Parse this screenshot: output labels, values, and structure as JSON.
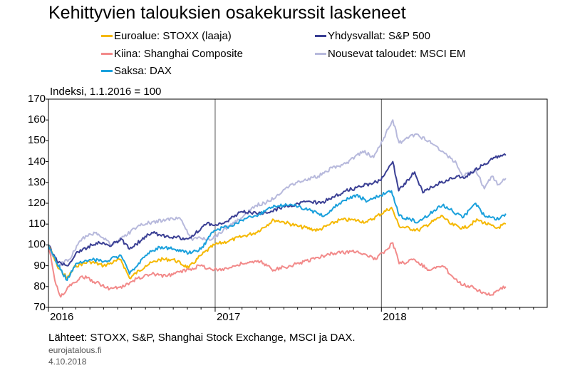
{
  "chart_data": {
    "type": "line",
    "title": "Kehittyvien talouksien osakekurssit laskeneet",
    "unit_label": "Indeksi, 1.1.2016 = 100",
    "ylim": [
      70,
      170
    ],
    "yticks": [
      "70",
      "80",
      "90",
      "100",
      "110",
      "120",
      "130",
      "140",
      "150",
      "160",
      "170"
    ],
    "xlim": [
      "2016-01-01",
      "2018-12-31"
    ],
    "xticks": [
      "2016",
      "2017",
      "2018"
    ],
    "grid": "vertical lines at year boundaries",
    "legend_placement": "top",
    "series": [
      {
        "name": "Euroalue: STOXX (laaja)",
        "color": "#f5b800",
        "points": [
          [
            "2016-01-01",
            100
          ],
          [
            "2016-01-20",
            90
          ],
          [
            "2016-02-11",
            84
          ],
          [
            "2016-03-01",
            90
          ],
          [
            "2016-04-01",
            92
          ],
          [
            "2016-05-01",
            90
          ],
          [
            "2016-06-08",
            93
          ],
          [
            "2016-06-27",
            84
          ],
          [
            "2016-08-01",
            90
          ],
          [
            "2016-09-01",
            93
          ],
          [
            "2016-10-01",
            93
          ],
          [
            "2016-11-04",
            89
          ],
          [
            "2016-12-01",
            95
          ],
          [
            "2016-12-30",
            100
          ],
          [
            "2017-02-01",
            102
          ],
          [
            "2017-03-01",
            104
          ],
          [
            "2017-04-01",
            106
          ],
          [
            "2017-05-10",
            112
          ],
          [
            "2017-06-01",
            111
          ],
          [
            "2017-07-01",
            109
          ],
          [
            "2017-08-15",
            107
          ],
          [
            "2017-10-01",
            112
          ],
          [
            "2017-11-01",
            112
          ],
          [
            "2017-12-01",
            111
          ],
          [
            "2018-01-23",
            118
          ],
          [
            "2018-02-09",
            109
          ],
          [
            "2018-03-23",
            107
          ],
          [
            "2018-05-15",
            114
          ],
          [
            "2018-06-01",
            110
          ],
          [
            "2018-07-01",
            108
          ],
          [
            "2018-08-01",
            112
          ],
          [
            "2018-09-10",
            108
          ],
          [
            "2018-10-01",
            110
          ]
        ]
      },
      {
        "name": "Kiina: Shanghai Composite",
        "color": "#f28a8a",
        "points": [
          [
            "2016-01-01",
            100
          ],
          [
            "2016-01-15",
            83
          ],
          [
            "2016-01-28",
            75
          ],
          [
            "2016-02-15",
            80
          ],
          [
            "2016-03-15",
            85
          ],
          [
            "2016-04-15",
            82
          ],
          [
            "2016-05-15",
            79
          ],
          [
            "2016-06-15",
            80
          ],
          [
            "2016-07-15",
            84
          ],
          [
            "2016-08-15",
            86
          ],
          [
            "2016-09-15",
            85
          ],
          [
            "2016-10-15",
            87
          ],
          [
            "2016-11-30",
            90
          ],
          [
            "2016-12-30",
            88
          ],
          [
            "2017-02-01",
            89
          ],
          [
            "2017-03-01",
            91
          ],
          [
            "2017-04-10",
            92
          ],
          [
            "2017-05-10",
            88
          ],
          [
            "2017-06-15",
            90
          ],
          [
            "2017-07-15",
            92
          ],
          [
            "2017-08-15",
            94
          ],
          [
            "2017-09-15",
            96
          ],
          [
            "2017-11-10",
            97
          ],
          [
            "2017-12-20",
            93
          ],
          [
            "2018-01-26",
            101
          ],
          [
            "2018-02-09",
            91
          ],
          [
            "2018-03-15",
            93
          ],
          [
            "2018-04-15",
            88
          ],
          [
            "2018-05-15",
            90
          ],
          [
            "2018-06-20",
            82
          ],
          [
            "2018-07-15",
            80
          ],
          [
            "2018-08-15",
            77
          ],
          [
            "2018-09-01",
            76
          ],
          [
            "2018-09-15",
            78
          ],
          [
            "2018-10-01",
            80
          ]
        ]
      },
      {
        "name": "Saksa: DAX",
        "color": "#1aa0dc",
        "points": [
          [
            "2016-01-01",
            100
          ],
          [
            "2016-01-20",
            91
          ],
          [
            "2016-02-11",
            83
          ],
          [
            "2016-03-01",
            91
          ],
          [
            "2016-04-01",
            93
          ],
          [
            "2016-05-01",
            92
          ],
          [
            "2016-06-08",
            95
          ],
          [
            "2016-06-27",
            86
          ],
          [
            "2016-08-01",
            95
          ],
          [
            "2016-09-01",
            99
          ],
          [
            "2016-10-01",
            98
          ],
          [
            "2016-11-04",
            96
          ],
          [
            "2016-12-01",
            98
          ],
          [
            "2016-12-30",
            107
          ],
          [
            "2017-02-01",
            109
          ],
          [
            "2017-03-01",
            112
          ],
          [
            "2017-04-01",
            114
          ],
          [
            "2017-05-10",
            119
          ],
          [
            "2017-06-20",
            119
          ],
          [
            "2017-07-25",
            117
          ],
          [
            "2017-08-29",
            114
          ],
          [
            "2017-10-01",
            120
          ],
          [
            "2017-11-07",
            124
          ],
          [
            "2017-12-01",
            121
          ],
          [
            "2018-01-23",
            126
          ],
          [
            "2018-02-09",
            114
          ],
          [
            "2018-03-23",
            111
          ],
          [
            "2018-05-15",
            119
          ],
          [
            "2018-06-01",
            117
          ],
          [
            "2018-06-28",
            113
          ],
          [
            "2018-07-27",
            120
          ],
          [
            "2018-08-15",
            114
          ],
          [
            "2018-09-10",
            112
          ],
          [
            "2018-10-01",
            115
          ]
        ]
      },
      {
        "name": "Yhdysvallat: S&P 500",
        "color": "#3a3f94",
        "points": [
          [
            "2016-01-01",
            100
          ],
          [
            "2016-01-20",
            92
          ],
          [
            "2016-02-11",
            90
          ],
          [
            "2016-03-01",
            96
          ],
          [
            "2016-04-15",
            101
          ],
          [
            "2016-05-20",
            100
          ],
          [
            "2016-06-08",
            103
          ],
          [
            "2016-06-27",
            98
          ],
          [
            "2016-08-15",
            106
          ],
          [
            "2016-09-15",
            104
          ],
          [
            "2016-11-04",
            103
          ],
          [
            "2016-12-13",
            110
          ],
          [
            "2017-01-15",
            110
          ],
          [
            "2017-03-01",
            116
          ],
          [
            "2017-04-13",
            115
          ],
          [
            "2017-06-15",
            119
          ],
          [
            "2017-07-25",
            121
          ],
          [
            "2017-08-21",
            120
          ],
          [
            "2017-10-15",
            126
          ],
          [
            "2017-11-15",
            128
          ],
          [
            "2017-12-31",
            131
          ],
          [
            "2018-01-26",
            140
          ],
          [
            "2018-02-08",
            126
          ],
          [
            "2018-03-15",
            135
          ],
          [
            "2018-04-02",
            125
          ],
          [
            "2018-05-01",
            129
          ],
          [
            "2018-06-15",
            133
          ],
          [
            "2018-07-01",
            132
          ],
          [
            "2018-08-15",
            139
          ],
          [
            "2018-09-20",
            143
          ],
          [
            "2018-10-01",
            143
          ]
        ]
      },
      {
        "name": "Nousevat taloudet: MSCI EM",
        "color": "#b7b9dc",
        "points": [
          [
            "2016-01-01",
            100
          ],
          [
            "2016-01-21",
            90
          ],
          [
            "2016-02-15",
            93
          ],
          [
            "2016-03-15",
            103
          ],
          [
            "2016-04-15",
            106
          ],
          [
            "2016-05-20",
            100
          ],
          [
            "2016-06-15",
            104
          ],
          [
            "2016-07-15",
            109
          ],
          [
            "2016-08-15",
            111
          ],
          [
            "2016-09-15",
            112
          ],
          [
            "2016-10-15",
            113
          ],
          [
            "2016-11-10",
            103
          ],
          [
            "2016-12-27",
            103
          ],
          [
            "2017-01-31",
            109
          ],
          [
            "2017-03-01",
            113
          ],
          [
            "2017-04-01",
            119
          ],
          [
            "2017-05-01",
            121
          ],
          [
            "2017-06-15",
            129
          ],
          [
            "2017-07-15",
            131
          ],
          [
            "2017-08-15",
            133
          ],
          [
            "2017-09-15",
            137
          ],
          [
            "2017-10-15",
            139
          ],
          [
            "2017-11-21",
            145
          ],
          [
            "2017-12-15",
            142
          ],
          [
            "2018-01-26",
            160
          ],
          [
            "2018-02-09",
            149
          ],
          [
            "2018-03-15",
            153
          ],
          [
            "2018-04-15",
            150
          ],
          [
            "2018-05-15",
            145
          ],
          [
            "2018-06-15",
            139
          ],
          [
            "2018-06-28",
            133
          ],
          [
            "2018-07-27",
            136
          ],
          [
            "2018-08-15",
            127
          ],
          [
            "2018-09-01",
            133
          ],
          [
            "2018-09-15",
            129
          ],
          [
            "2018-10-01",
            132
          ]
        ]
      }
    ]
  },
  "footer": {
    "source": "Lähteet: STOXX, S&P, Shanghai Stock Exchange, MSCI ja DAX.",
    "site": "eurojatalous.fi",
    "date": "4.10.2018"
  }
}
